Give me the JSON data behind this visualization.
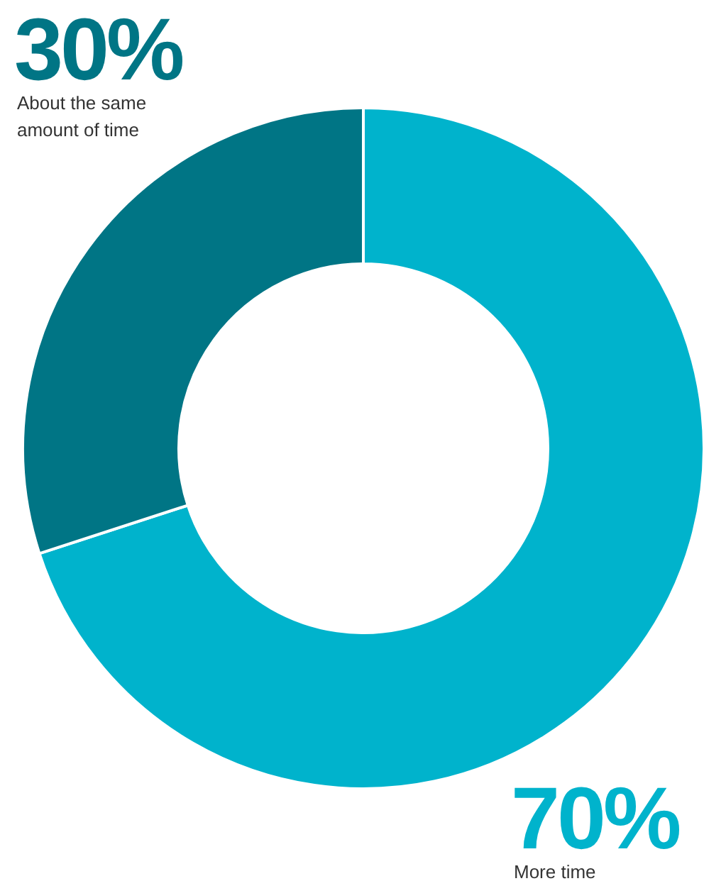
{
  "chart_data": {
    "type": "donut",
    "categories": [
      "More time",
      "About the same amount of time"
    ],
    "values": [
      70,
      30
    ],
    "value_labels": [
      "70%",
      "30%"
    ],
    "colors": [
      "#00b3cc",
      "#007585"
    ]
  }
}
